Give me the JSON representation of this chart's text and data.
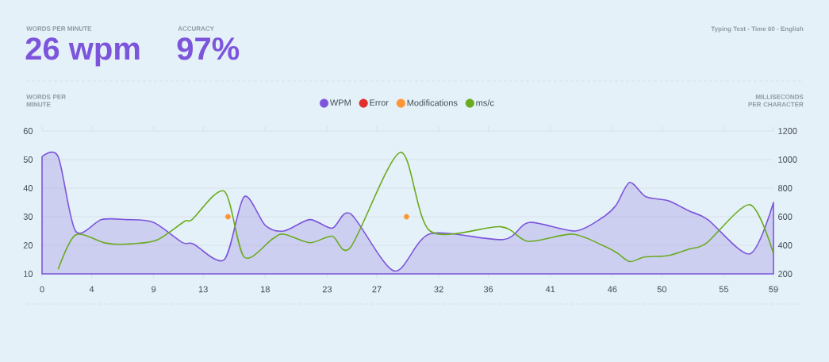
{
  "chart_data": {
    "type": "line",
    "title": "Typing Test - Time 60 - English",
    "annotations": [
      "WORDS PER MINUTE",
      "26 wpm",
      "ACCURACY",
      "97%"
    ],
    "ylabel": "WORDS PER MINUTE",
    "y2label": "MILLISECONDS PER CHARACTER",
    "xlim": [
      0,
      59
    ],
    "xticks": [
      0,
      4,
      9,
      13,
      18,
      23,
      27,
      32,
      36,
      41,
      46,
      50,
      55,
      59
    ],
    "ylim": [
      10,
      60
    ],
    "yticks": [
      10,
      20,
      30,
      40,
      50,
      60
    ],
    "y2lim": [
      200,
      1200
    ],
    "y2ticks": [
      200,
      400,
      600,
      800,
      1000,
      1200
    ],
    "grid": "y",
    "legend": "top",
    "series": [
      {
        "name": "WPM",
        "type": "area",
        "color": "#7d55dc",
        "x": [
          0,
          1.3,
          2.7,
          4.8,
          6.8,
          9.0,
          11.3,
          12.2,
          14.7,
          16.3,
          18.0,
          19.5,
          21.6,
          23.4,
          24.9,
          28.4,
          31.3,
          37.2,
          39.3,
          43.0,
          45.3,
          46.3,
          47.4,
          48.7,
          50.5,
          52.2,
          53.7,
          57.1,
          59
        ],
        "values": [
          51,
          51,
          25,
          29,
          29,
          28,
          21,
          20.5,
          15,
          37,
          27,
          25,
          29,
          26,
          31,
          11,
          24,
          22,
          28,
          25,
          30,
          34,
          42,
          37,
          35.6,
          32,
          29,
          17,
          35
        ]
      },
      {
        "name": "Error",
        "type": "scatter",
        "marker": "circle",
        "color": "#e0302e"
      },
      {
        "name": "Modifications",
        "type": "scatter",
        "marker": "circle",
        "color": "#ff9633",
        "x": [
          15.0,
          29.4
        ],
        "values": [
          30,
          30
        ]
      },
      {
        "name": "ms/c",
        "axis": "y2",
        "color": "#6aaa1e",
        "x": [
          1.3,
          2.7,
          5.1,
          6.7,
          9.2,
          11.5,
          12.1,
          14.7,
          16.3,
          18.6,
          19.5,
          21.6,
          23.4,
          24.9,
          28.9,
          31.3,
          37.0,
          39.2,
          42.8,
          45.3,
          46.4,
          47.4,
          48.6,
          50.5,
          52.2,
          53.6,
          57.1,
          59
        ],
        "values": [
          232,
          472,
          416,
          408,
          434,
          568,
          580,
          778,
          318,
          446,
          478,
          418,
          464,
          388,
          1050,
          500,
          530,
          428,
          478,
          396,
          346,
          286,
          318,
          328,
          374,
          416,
          684,
          342
        ]
      }
    ]
  }
}
